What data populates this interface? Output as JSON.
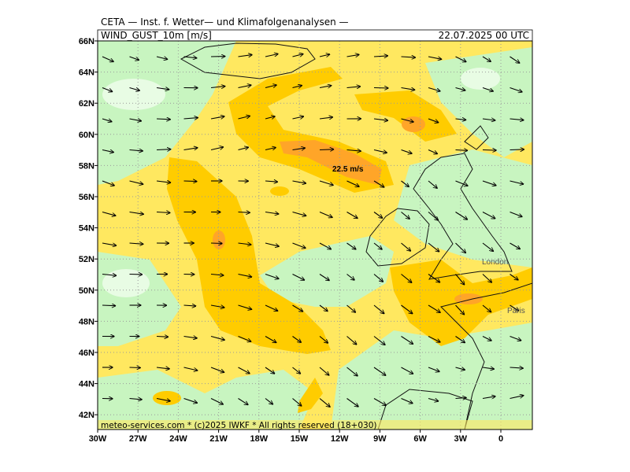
{
  "header": {
    "source": "CETA — Inst. f. Wetter— und Klimafolgenanalysen —",
    "field": "WIND_GUST_10m [m/s]",
    "date": "22.07.2025 00 UTC"
  },
  "map": {
    "lat_labels": [
      "66N",
      "64N",
      "62N",
      "60N",
      "58N",
      "56N",
      "54N",
      "52N",
      "50N",
      "48N",
      "46N",
      "44N",
      "42N"
    ],
    "lon_labels": [
      "30W",
      "27W",
      "24W",
      "21W",
      "18W",
      "15W",
      "12W",
      "9W",
      "6W",
      "3W",
      "0"
    ],
    "annotation": "22.5 m/s",
    "places": [
      "London",
      "Paris"
    ]
  },
  "footer": "meteo-services.com * (c)2025 IWKF * All rights reserved (18+030)"
}
